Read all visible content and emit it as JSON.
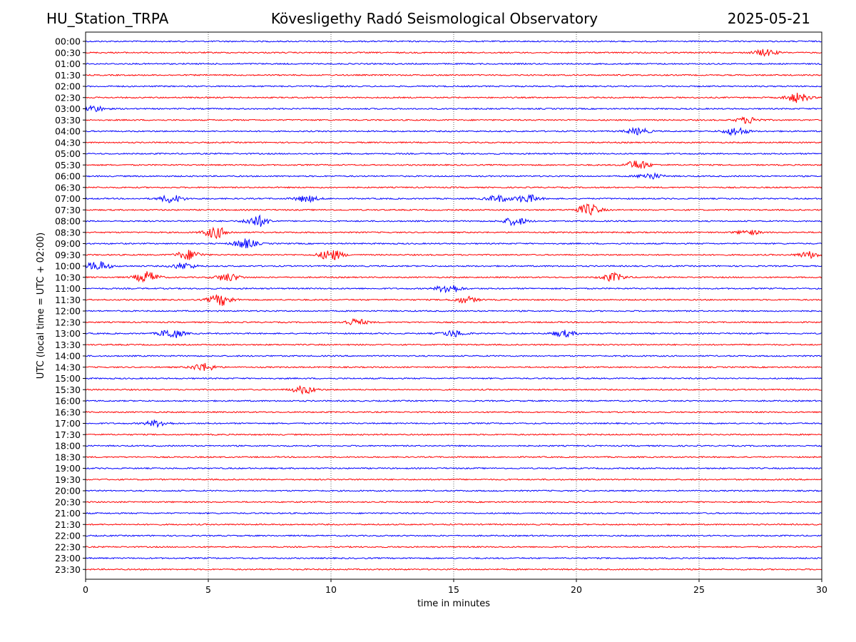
{
  "header": {
    "station": "HU_Station_TRPA",
    "observatory": "Kövesligethy Radó Seismological Observatory",
    "date": "2025-05-21"
  },
  "chart_data": {
    "type": "line",
    "title": "Kövesligethy Radó Seismological Observatory",
    "xlabel": "time in minutes",
    "ylabel": "UTC (local time = UTC + 02:00)",
    "xlim": [
      0,
      30
    ],
    "x_ticks": [
      "0",
      "5",
      "10",
      "15",
      "20",
      "25",
      "30"
    ],
    "grid": "vertical dotted at 5-minute intervals",
    "row_colors": [
      "#0000ff",
      "#ff0000"
    ],
    "rows": [
      "00:00",
      "00:30",
      "01:00",
      "01:30",
      "02:00",
      "02:30",
      "03:00",
      "03:30",
      "04:00",
      "04:30",
      "05:00",
      "05:30",
      "06:00",
      "06:30",
      "07:00",
      "07:30",
      "08:00",
      "08:30",
      "09:00",
      "09:30",
      "10:00",
      "10:30",
      "11:00",
      "11:30",
      "12:00",
      "12:30",
      "13:00",
      "13:30",
      "14:00",
      "14:30",
      "15:00",
      "15:30",
      "16:00",
      "16:30",
      "17:00",
      "17:30",
      "18:00",
      "18:30",
      "19:00",
      "19:30",
      "20:00",
      "20:30",
      "21:00",
      "21:30",
      "22:00",
      "22:30",
      "23:00",
      "23:30"
    ],
    "events": [
      {
        "row": "00:30",
        "minute": 27.7,
        "amplitude": 2
      },
      {
        "row": "02:30",
        "minute": 29.0,
        "amplitude": 3
      },
      {
        "row": "03:00",
        "minute": 0.3,
        "amplitude": 2
      },
      {
        "row": "03:30",
        "minute": 27.0,
        "amplitude": 2
      },
      {
        "row": "04:00",
        "minute": 22.5,
        "amplitude": 2
      },
      {
        "row": "04:00",
        "minute": 26.5,
        "amplitude": 2.5
      },
      {
        "row": "05:30",
        "minute": 22.5,
        "amplitude": 3
      },
      {
        "row": "06:00",
        "minute": 23.0,
        "amplitude": 2
      },
      {
        "row": "07:00",
        "minute": 3.5,
        "amplitude": 2.5
      },
      {
        "row": "07:00",
        "minute": 9.0,
        "amplitude": 2
      },
      {
        "row": "07:00",
        "minute": 16.8,
        "amplitude": 2
      },
      {
        "row": "07:00",
        "minute": 18.0,
        "amplitude": 2.5
      },
      {
        "row": "07:30",
        "minute": 20.5,
        "amplitude": 3.5
      },
      {
        "row": "08:00",
        "minute": 7.0,
        "amplitude": 3.5
      },
      {
        "row": "08:00",
        "minute": 17.5,
        "amplitude": 2.5
      },
      {
        "row": "08:30",
        "minute": 5.3,
        "amplitude": 3.5
      },
      {
        "row": "08:30",
        "minute": 27.0,
        "amplitude": 1.5
      },
      {
        "row": "09:00",
        "minute": 6.5,
        "amplitude": 3
      },
      {
        "row": "09:30",
        "minute": 4.2,
        "amplitude": 3
      },
      {
        "row": "09:30",
        "minute": 10.0,
        "amplitude": 3.5
      },
      {
        "row": "09:30",
        "minute": 29.5,
        "amplitude": 2
      },
      {
        "row": "10:00",
        "minute": 0.5,
        "amplitude": 3
      },
      {
        "row": "10:00",
        "minute": 4.0,
        "amplitude": 2
      },
      {
        "row": "10:30",
        "minute": 2.5,
        "amplitude": 3.5
      },
      {
        "row": "10:30",
        "minute": 5.8,
        "amplitude": 2.5
      },
      {
        "row": "10:30",
        "minute": 21.5,
        "amplitude": 2.5
      },
      {
        "row": "11:00",
        "minute": 14.8,
        "amplitude": 3
      },
      {
        "row": "11:30",
        "minute": 5.5,
        "amplitude": 3.5
      },
      {
        "row": "11:30",
        "minute": 15.5,
        "amplitude": 2
      },
      {
        "row": "12:30",
        "minute": 11.0,
        "amplitude": 2
      },
      {
        "row": "13:00",
        "minute": 3.5,
        "amplitude": 3
      },
      {
        "row": "13:00",
        "minute": 15.0,
        "amplitude": 2
      },
      {
        "row": "13:00",
        "minute": 19.5,
        "amplitude": 2
      },
      {
        "row": "14:30",
        "minute": 4.8,
        "amplitude": 2.5
      },
      {
        "row": "15:30",
        "minute": 8.9,
        "amplitude": 2.5
      },
      {
        "row": "17:00",
        "minute": 2.9,
        "amplitude": 2
      }
    ]
  }
}
